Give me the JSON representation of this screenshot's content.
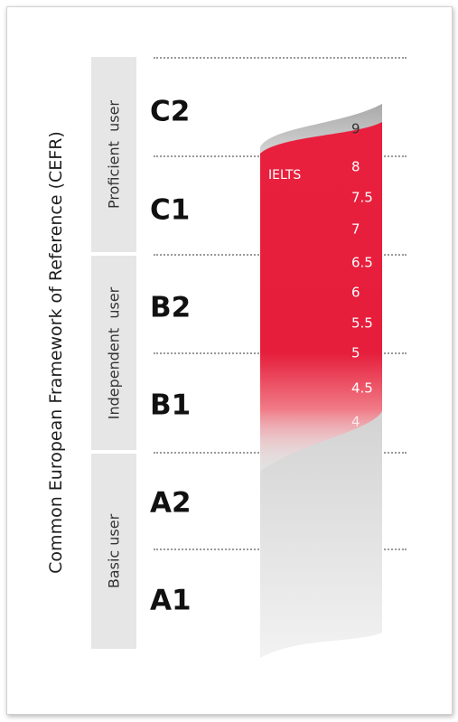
{
  "title": "Common European Framework of Reference (CEFR)",
  "bands": [
    {
      "label": "Proficient  user"
    },
    {
      "label": "Independent  user"
    },
    {
      "label": "Basic user"
    }
  ],
  "levels": [
    "C2",
    "C1",
    "B2",
    "B1",
    "A2",
    "A1"
  ],
  "ielts": {
    "label": "IELTS",
    "scores": [
      "9",
      "8",
      "7.5",
      "7",
      "6.5",
      "6",
      "5.5",
      "5",
      "4.5",
      "4"
    ]
  },
  "colors": {
    "ielts_red": "#e61e3c",
    "grey_band": "#cfcfcf",
    "panel_grey": "#e6e6e6"
  }
}
